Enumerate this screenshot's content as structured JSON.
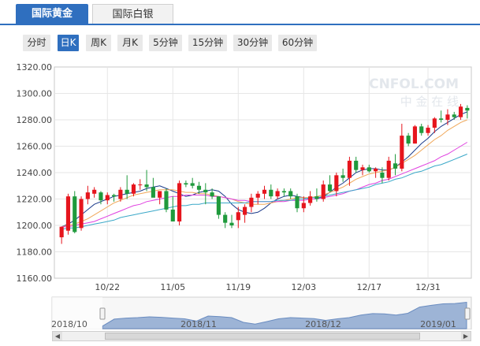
{
  "tabs": [
    {
      "label": "国际黄金",
      "active": true
    },
    {
      "label": "国际白银",
      "active": false
    }
  ],
  "periods": [
    {
      "label": "分时"
    },
    {
      "label": "日K",
      "selected": true
    },
    {
      "label": "周K"
    },
    {
      "label": "月K"
    },
    {
      "label": "5分钟"
    },
    {
      "label": "15分钟"
    },
    {
      "label": "30分钟"
    },
    {
      "label": "60分钟"
    }
  ],
  "watermark": "CNFOL.COM",
  "watermark_sub": "中 金 在 线",
  "colors": {
    "up": "#e6151d",
    "down": "#1f9a3c",
    "ma5": "#1a3a8a",
    "ma10": "#f0a85a",
    "ma20": "#e040e0",
    "ma30": "#3aa8c8",
    "accent": "#2f6fbf"
  },
  "chart_data": {
    "type": "candlestick",
    "ylim": [
      1160,
      1320
    ],
    "y_ticks": [
      "1320.00",
      "1300.00",
      "1280.00",
      "1260.00",
      "1240.00",
      "1220.00",
      "1200.00",
      "1180.00",
      "1160.00"
    ],
    "x_labels": [
      {
        "label": "10/22",
        "index": 7
      },
      {
        "label": "11/05",
        "index": 17
      },
      {
        "label": "11/19",
        "index": 27
      },
      {
        "label": "12/03",
        "index": 37
      },
      {
        "label": "12/17",
        "index": 47
      },
      {
        "label": "12/31",
        "index": 56
      }
    ],
    "candles": [
      [
        1191,
        1199,
        1186,
        1199
      ],
      [
        1196,
        1224,
        1193,
        1222
      ],
      [
        1222,
        1226,
        1194,
        1195
      ],
      [
        1198,
        1222,
        1196,
        1220
      ],
      [
        1220,
        1230,
        1216,
        1225
      ],
      [
        1224,
        1229,
        1221,
        1227
      ],
      [
        1225,
        1226,
        1216,
        1219
      ],
      [
        1219,
        1225,
        1216,
        1223
      ],
      [
        1223,
        1224,
        1218,
        1222
      ],
      [
        1220,
        1229,
        1218,
        1227
      ],
      [
        1227,
        1238,
        1220,
        1224
      ],
      [
        1224,
        1232,
        1222,
        1231
      ],
      [
        1231,
        1235,
        1227,
        1231
      ],
      [
        1231,
        1242,
        1226,
        1229
      ],
      [
        1229,
        1236,
        1222,
        1221
      ],
      [
        1221,
        1226,
        1216,
        1226
      ],
      [
        1226,
        1228,
        1210,
        1212
      ],
      [
        1212,
        1222,
        1204,
        1203
      ],
      [
        1203,
        1234,
        1200,
        1232
      ],
      [
        1232,
        1234,
        1229,
        1231
      ],
      [
        1232,
        1236,
        1228,
        1230
      ],
      [
        1230,
        1233,
        1224,
        1227
      ],
      [
        1227,
        1232,
        1216,
        1225
      ],
      [
        1225,
        1228,
        1220,
        1222
      ],
      [
        1222,
        1222,
        1205,
        1208
      ],
      [
        1208,
        1210,
        1198,
        1202
      ],
      [
        1202,
        1208,
        1198,
        1200
      ],
      [
        1204,
        1214,
        1198,
        1210
      ],
      [
        1208,
        1216,
        1202,
        1214
      ],
      [
        1214,
        1224,
        1210,
        1221
      ],
      [
        1221,
        1226,
        1216,
        1224
      ],
      [
        1224,
        1230,
        1220,
        1227
      ],
      [
        1227,
        1231,
        1220,
        1222
      ],
      [
        1222,
        1228,
        1220,
        1226
      ],
      [
        1226,
        1228,
        1222,
        1225
      ],
      [
        1226,
        1228,
        1220,
        1222
      ],
      [
        1222,
        1224,
        1210,
        1213
      ],
      [
        1213,
        1222,
        1210,
        1217
      ],
      [
        1217,
        1226,
        1215,
        1222
      ],
      [
        1222,
        1228,
        1218,
        1220
      ],
      [
        1220,
        1234,
        1218,
        1231
      ],
      [
        1231,
        1238,
        1225,
        1226
      ],
      [
        1226,
        1240,
        1222,
        1238
      ],
      [
        1238,
        1243,
        1233,
        1236
      ],
      [
        1236,
        1252,
        1230,
        1249
      ],
      [
        1249,
        1252,
        1240,
        1242
      ],
      [
        1242,
        1246,
        1238,
        1244
      ],
      [
        1244,
        1246,
        1240,
        1241
      ],
      [
        1241,
        1244,
        1236,
        1243
      ],
      [
        1240,
        1244,
        1232,
        1236
      ],
      [
        1236,
        1252,
        1234,
        1249
      ],
      [
        1247,
        1254,
        1238,
        1243
      ],
      [
        1243,
        1277,
        1241,
        1268
      ],
      [
        1268,
        1270,
        1260,
        1262
      ],
      [
        1262,
        1276,
        1262,
        1275
      ],
      [
        1275,
        1277,
        1268,
        1270
      ],
      [
        1270,
        1276,
        1268,
        1274
      ],
      [
        1274,
        1282,
        1270,
        1281
      ],
      [
        1281,
        1287,
        1278,
        1280
      ],
      [
        1280,
        1288,
        1276,
        1284
      ],
      [
        1284,
        1286,
        1280,
        1282
      ],
      [
        1282,
        1292,
        1280,
        1290
      ],
      [
        1289,
        1291,
        1281,
        1287
      ]
    ],
    "ma_series": [
      {
        "key": "ma5",
        "values": [
          1199,
          1201,
          1204,
          1208,
          1212,
          1216,
          1218,
          1220,
          1222,
          1223,
          1224,
          1225,
          1226,
          1228,
          1229,
          1230,
          1228,
          1226,
          1224,
          1222,
          1223,
          1225,
          1226,
          1227,
          1226,
          1222,
          1216,
          1212,
          1210,
          1209,
          1210,
          1213,
          1217,
          1220,
          1222,
          1223,
          1222,
          1221,
          1220,
          1220,
          1222,
          1225,
          1229,
          1232,
          1236,
          1240,
          1242,
          1243,
          1243,
          1242,
          1242,
          1244,
          1248,
          1252,
          1257,
          1262,
          1266,
          1271,
          1275,
          1278,
          1281,
          1284,
          1286
        ]
      },
      {
        "key": "ma10",
        "values": [
          1199,
          1200,
          1201,
          1203,
          1205,
          1208,
          1211,
          1214,
          1217,
          1219,
          1221,
          1223,
          1224,
          1225,
          1226,
          1227,
          1227,
          1227,
          1226,
          1225,
          1225,
          1224,
          1224,
          1223,
          1222,
          1221,
          1220,
          1218,
          1217,
          1216,
          1216,
          1216,
          1217,
          1218,
          1219,
          1220,
          1221,
          1221,
          1221,
          1222,
          1223,
          1225,
          1227,
          1229,
          1232,
          1235,
          1237,
          1239,
          1240,
          1241,
          1242,
          1244,
          1247,
          1250,
          1253,
          1257,
          1261,
          1265,
          1268,
          1272,
          1275,
          1278,
          1280
        ]
      },
      {
        "key": "ma20",
        "values": [
          1199,
          1199,
          1200,
          1201,
          1202,
          1203,
          1205,
          1207,
          1209,
          1211,
          1213,
          1215,
          1216,
          1218,
          1219,
          1220,
          1221,
          1222,
          1222,
          1223,
          1223,
          1223,
          1223,
          1222,
          1222,
          1221,
          1220,
          1219,
          1219,
          1218,
          1218,
          1218,
          1218,
          1218,
          1218,
          1219,
          1219,
          1219,
          1220,
          1220,
          1221,
          1222,
          1223,
          1224,
          1226,
          1227,
          1229,
          1231,
          1232,
          1234,
          1235,
          1237,
          1239,
          1241,
          1243,
          1245,
          1247,
          1249,
          1252,
          1254,
          1257,
          1260,
          1263
        ]
      },
      {
        "key": "ma30",
        "values": [
          1197,
          1198,
          1198,
          1199,
          1200,
          1201,
          1202,
          1203,
          1204,
          1206,
          1207,
          1208,
          1209,
          1210,
          1211,
          1212,
          1213,
          1214,
          1215,
          1215,
          1216,
          1216,
          1217,
          1217,
          1217,
          1217,
          1217,
          1217,
          1217,
          1218,
          1218,
          1218,
          1218,
          1219,
          1219,
          1219,
          1220,
          1220,
          1221,
          1221,
          1222,
          1223,
          1224,
          1225,
          1226,
          1227,
          1228,
          1229,
          1231,
          1232,
          1233,
          1235,
          1236,
          1238,
          1240,
          1241,
          1243,
          1245,
          1246,
          1248,
          1250,
          1252,
          1254
        ]
      }
    ],
    "navigator": {
      "labels": [
        "2018/10",
        "2018/11",
        "2018/12",
        "2019/01"
      ],
      "values": [
        1192,
        1220,
        1224,
        1226,
        1229,
        1227,
        1224,
        1221,
        1212,
        1232,
        1230,
        1226,
        1207,
        1200,
        1210,
        1221,
        1226,
        1224,
        1222,
        1215,
        1221,
        1226,
        1236,
        1242,
        1241,
        1236,
        1243,
        1268,
        1275,
        1281,
        1282,
        1287
      ]
    }
  }
}
